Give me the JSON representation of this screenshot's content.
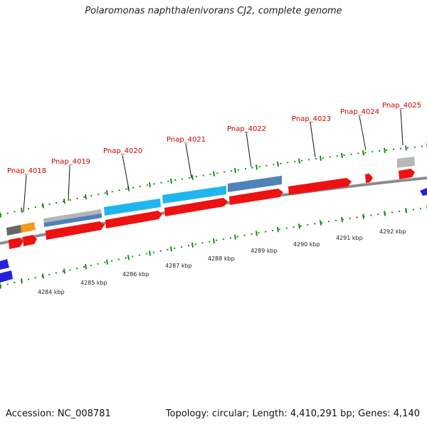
{
  "title": "Polaromonas naphthalenivorans CJ2, complete genome",
  "footer": {
    "accession": "Accession: NC_008781",
    "summary": "Topology: circular; Length: 4,410,291 bp; Genes: 4,140"
  },
  "colors": {
    "cds_forward": "#ee1111",
    "cds_reverse": "#2222dd",
    "backbone": "#808080",
    "tick": "#1a8a1a",
    "label": "#cc0000"
  },
  "kbp_labels": [
    "4284 kbp",
    "4285 kbp",
    "4286 kbp",
    "4287 kbp",
    "4288 kbp",
    "4289 kbp",
    "4290 kbp",
    "4291 kbp",
    "4292 kbp"
  ],
  "gene_labels": [
    "Pnap_4018",
    "Pnap_4019",
    "Pnap_4020",
    "Pnap_4021",
    "Pnap_4022",
    "Pnap_4023",
    "Pnap_4024",
    "Pnap_4025"
  ]
}
